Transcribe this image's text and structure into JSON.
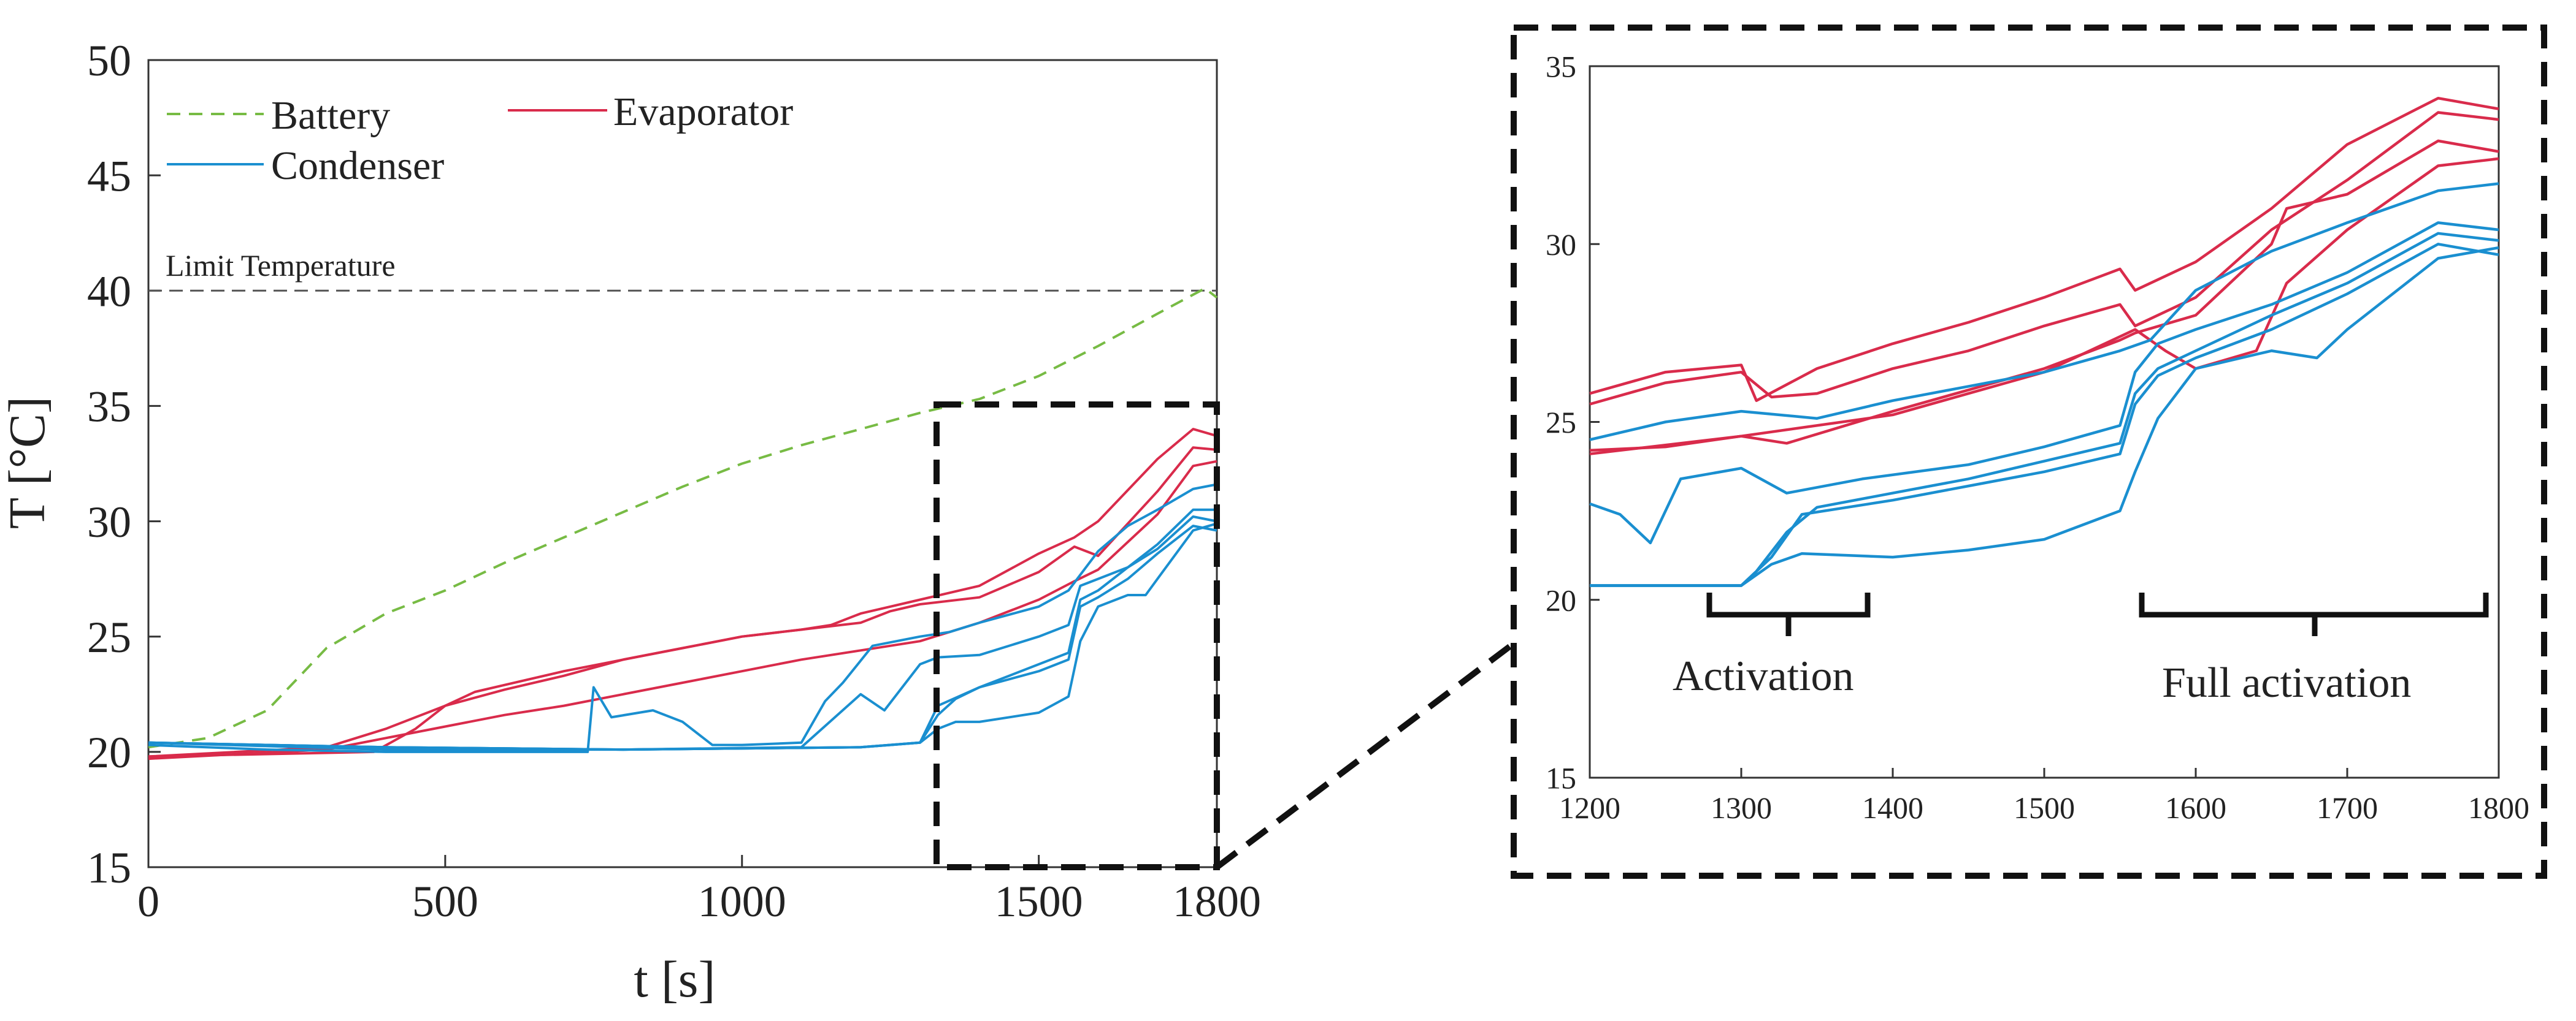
{
  "chart_data": [
    {
      "type": "line",
      "title": "",
      "xlabel": "t [s]",
      "ylabel": "T [°C]",
      "xlim": [
        0,
        1800
      ],
      "ylim": [
        15,
        50
      ],
      "xticks": [
        0,
        500,
        1000,
        1500,
        1800
      ],
      "yticks": [
        15,
        20,
        25,
        30,
        35,
        40,
        45,
        50
      ],
      "legend": [
        "Battery",
        "Evaporator",
        "Condenser"
      ],
      "legend_position": "top-left",
      "grid": false,
      "reference_line": {
        "y": 40,
        "label": "Limit Temperature"
      },
      "zoom_region": {
        "x": [
          1325,
          1800
        ],
        "y": [
          15,
          35
        ]
      },
      "series": [
        {
          "name": "Battery",
          "color": "#77bb44",
          "style": "dashed",
          "x": [
            0,
            100,
            200,
            300,
            400,
            500,
            600,
            700,
            800,
            900,
            1000,
            1100,
            1200,
            1300,
            1400,
            1500,
            1600,
            1700,
            1780,
            1800
          ],
          "y": [
            20.2,
            20.6,
            21.8,
            24.5,
            26.0,
            27.0,
            28.2,
            29.3,
            30.4,
            31.5,
            32.5,
            33.3,
            34.0,
            34.7,
            35.3,
            36.3,
            37.6,
            39.0,
            40.1,
            39.7
          ]
        },
        {
          "name": "Evaporator 1",
          "color": "#d92b4b",
          "x": [
            0,
            300,
            400,
            500,
            600,
            700,
            800,
            900,
            1000,
            1100,
            1150,
            1200,
            1250,
            1300,
            1400,
            1500,
            1560,
            1600,
            1700,
            1760,
            1800
          ],
          "y": [
            19.8,
            20.2,
            21.0,
            22.0,
            22.7,
            23.3,
            24.0,
            24.5,
            25.0,
            25.3,
            25.5,
            26.0,
            26.3,
            26.6,
            27.2,
            28.6,
            29.3,
            30.0,
            32.7,
            34.0,
            33.7
          ]
        },
        {
          "name": "Evaporator 2",
          "color": "#d92b4b",
          "x": [
            0,
            380,
            450,
            500,
            550,
            600,
            700,
            800,
            900,
            1000,
            1100,
            1200,
            1250,
            1300,
            1400,
            1500,
            1560,
            1600,
            1700,
            1760,
            1800
          ],
          "y": [
            19.8,
            20.0,
            21.0,
            22.0,
            22.6,
            22.9,
            23.5,
            24.0,
            24.5,
            25.0,
            25.3,
            25.6,
            26.1,
            26.4,
            26.7,
            27.8,
            28.9,
            28.5,
            31.3,
            33.2,
            33.1
          ]
        },
        {
          "name": "Evaporator 3",
          "color": "#d92b4b",
          "x": [
            0,
            300,
            400,
            500,
            600,
            700,
            800,
            900,
            1000,
            1100,
            1200,
            1300,
            1400,
            1500,
            1560,
            1600,
            1700,
            1760,
            1800
          ],
          "y": [
            19.7,
            20.1,
            20.6,
            21.1,
            21.6,
            22.0,
            22.5,
            23.0,
            23.5,
            24.0,
            24.4,
            24.8,
            25.6,
            26.6,
            27.4,
            27.9,
            30.3,
            32.4,
            32.6
          ]
        },
        {
          "name": "Condenser 1",
          "color": "#1a8fd0",
          "x": [
            0,
            200,
            400,
            600,
            740,
            750,
            780,
            850,
            900,
            950,
            1000,
            1100,
            1140,
            1170,
            1220,
            1300,
            1350,
            1400,
            1500,
            1550,
            1600,
            1650,
            1700,
            1760,
            1800
          ],
          "y": [
            20.3,
            20.1,
            20.0,
            20.0,
            20.0,
            22.8,
            21.5,
            21.8,
            21.3,
            20.3,
            20.3,
            20.4,
            22.2,
            23.0,
            24.6,
            25.0,
            25.2,
            25.6,
            26.3,
            27.0,
            28.7,
            29.8,
            30.5,
            31.4,
            31.6
          ]
        },
        {
          "name": "Condenser 2",
          "color": "#1a8fd0",
          "x": [
            0,
            400,
            800,
            1100,
            1200,
            1240,
            1300,
            1330,
            1400,
            1500,
            1550,
            1570,
            1600,
            1650,
            1700,
            1760,
            1800
          ],
          "y": [
            20.4,
            20.1,
            20.1,
            20.2,
            22.5,
            21.8,
            23.8,
            24.1,
            24.2,
            25.0,
            25.5,
            27.2,
            27.5,
            28.0,
            29.0,
            30.5,
            30.5
          ]
        },
        {
          "name": "Condenser 3",
          "color": "#1a8fd0",
          "x": [
            0,
            400,
            800,
            1200,
            1250,
            1300,
            1330,
            1400,
            1450,
            1500,
            1550,
            1570,
            1600,
            1650,
            1700,
            1760,
            1800
          ],
          "y": [
            20.4,
            20.2,
            20.1,
            20.2,
            20.3,
            20.4,
            22.0,
            22.8,
            23.3,
            23.8,
            24.3,
            26.6,
            27.0,
            28.0,
            28.8,
            30.2,
            30.0
          ]
        },
        {
          "name": "Condenser 4",
          "color": "#1a8fd0",
          "x": [
            0,
            400,
            800,
            1200,
            1300,
            1330,
            1360,
            1400,
            1500,
            1550,
            1570,
            1600,
            1650,
            1700,
            1760,
            1800
          ],
          "y": [
            20.4,
            20.2,
            20.1,
            20.2,
            20.4,
            21.6,
            22.3,
            22.8,
            23.5,
            24.0,
            26.3,
            26.7,
            27.5,
            28.6,
            29.8,
            29.6
          ]
        },
        {
          "name": "Condenser 5",
          "color": "#1a8fd0",
          "x": [
            0,
            400,
            800,
            1200,
            1300,
            1330,
            1360,
            1400,
            1500,
            1550,
            1570,
            1600,
            1650,
            1680,
            1700,
            1760,
            1800
          ],
          "y": [
            20.4,
            20.2,
            20.1,
            20.2,
            20.4,
            21.0,
            21.3,
            21.3,
            21.7,
            22.4,
            24.8,
            26.3,
            26.8,
            26.8,
            27.5,
            29.6,
            29.9
          ]
        }
      ]
    },
    {
      "type": "line",
      "title": "",
      "xlabel": "",
      "ylabel": "",
      "xlim": [
        1200,
        1800
      ],
      "ylim": [
        15,
        35
      ],
      "xticks": [
        1200,
        1300,
        1400,
        1500,
        1600,
        1700,
        1800
      ],
      "yticks": [
        15,
        20,
        25,
        30,
        35
      ],
      "grid": false,
      "annotations": [
        {
          "label": "Activation",
          "x_range": [
            1270,
            1380
          ],
          "y": 20
        },
        {
          "label": "Full activation",
          "x_range": [
            1565,
            1795
          ],
          "y": 20
        }
      ],
      "series": [
        {
          "name": "Evaporator 1",
          "color": "#d92b4b",
          "x": [
            1200,
            1250,
            1300,
            1310,
            1350,
            1400,
            1450,
            1500,
            1550,
            1560,
            1600,
            1650,
            1700,
            1760,
            1800
          ],
          "y": [
            25.8,
            26.4,
            26.6,
            25.6,
            26.5,
            27.2,
            27.8,
            28.5,
            29.3,
            28.7,
            29.5,
            31.0,
            32.8,
            34.1,
            33.8
          ]
        },
        {
          "name": "Evaporator 2",
          "color": "#d92b4b",
          "x": [
            1200,
            1250,
            1300,
            1320,
            1350,
            1400,
            1450,
            1500,
            1550,
            1560,
            1600,
            1650,
            1700,
            1760,
            1800
          ],
          "y": [
            25.5,
            26.1,
            26.4,
            25.7,
            25.8,
            26.5,
            27.0,
            27.7,
            28.3,
            27.7,
            28.5,
            30.4,
            31.8,
            33.7,
            33.5
          ]
        },
        {
          "name": "Evaporator 3",
          "color": "#d92b4b",
          "x": [
            1200,
            1250,
            1300,
            1330,
            1400,
            1450,
            1500,
            1550,
            1560,
            1600,
            1650,
            1660,
            1700,
            1760,
            1800
          ],
          "y": [
            24.2,
            24.3,
            24.6,
            24.4,
            25.3,
            25.9,
            26.5,
            27.3,
            27.5,
            28.0,
            30.0,
            31.0,
            31.4,
            32.9,
            32.6
          ]
        },
        {
          "name": "Evaporator 4",
          "color": "#d92b4b",
          "x": [
            1200,
            1300,
            1400,
            1500,
            1560,
            1580,
            1600,
            1640,
            1660,
            1700,
            1760,
            1800
          ],
          "y": [
            24.1,
            24.6,
            25.2,
            26.4,
            27.6,
            27.0,
            26.5,
            27.0,
            28.9,
            30.4,
            32.2,
            32.4
          ]
        },
        {
          "name": "Condenser 1",
          "color": "#1a8fd0",
          "x": [
            1200,
            1250,
            1300,
            1350,
            1400,
            1450,
            1500,
            1550,
            1570,
            1600,
            1650,
            1700,
            1760,
            1800
          ],
          "y": [
            24.5,
            25.0,
            25.3,
            25.1,
            25.6,
            26.0,
            26.4,
            27.0,
            27.3,
            28.7,
            29.8,
            30.6,
            31.5,
            31.7
          ]
        },
        {
          "name": "Condenser 2",
          "color": "#1a8fd0",
          "x": [
            1200,
            1220,
            1240,
            1260,
            1300,
            1330,
            1380,
            1450,
            1500,
            1550,
            1560,
            1575,
            1600,
            1650,
            1700,
            1760,
            1800
          ],
          "y": [
            22.7,
            22.4,
            21.6,
            23.4,
            23.7,
            23.0,
            23.4,
            23.8,
            24.3,
            24.9,
            26.4,
            27.2,
            27.6,
            28.3,
            29.2,
            30.6,
            30.4
          ]
        },
        {
          "name": "Condenser 3",
          "color": "#1a8fd0",
          "x": [
            1200,
            1300,
            1310,
            1330,
            1350,
            1400,
            1450,
            1500,
            1550,
            1560,
            1575,
            1600,
            1650,
            1700,
            1760,
            1800
          ],
          "y": [
            20.4,
            20.4,
            20.8,
            21.9,
            22.6,
            23.0,
            23.4,
            23.9,
            24.4,
            25.8,
            26.5,
            27.0,
            28.0,
            28.9,
            30.3,
            30.1
          ]
        },
        {
          "name": "Condenser 4",
          "color": "#1a8fd0",
          "x": [
            1200,
            1300,
            1320,
            1340,
            1370,
            1400,
            1450,
            1500,
            1550,
            1560,
            1575,
            1600,
            1650,
            1700,
            1760,
            1800
          ],
          "y": [
            20.4,
            20.4,
            21.2,
            22.4,
            22.6,
            22.8,
            23.2,
            23.6,
            24.1,
            25.5,
            26.3,
            26.8,
            27.6,
            28.6,
            30.0,
            29.7
          ]
        },
        {
          "name": "Condenser 5",
          "color": "#1a8fd0",
          "x": [
            1200,
            1300,
            1320,
            1340,
            1400,
            1450,
            1500,
            1550,
            1560,
            1575,
            1600,
            1650,
            1680,
            1700,
            1760,
            1800
          ],
          "y": [
            20.4,
            20.4,
            21.0,
            21.3,
            21.2,
            21.4,
            21.7,
            22.5,
            23.6,
            25.1,
            26.5,
            27.0,
            26.8,
            27.6,
            29.6,
            29.9
          ]
        }
      ]
    }
  ]
}
